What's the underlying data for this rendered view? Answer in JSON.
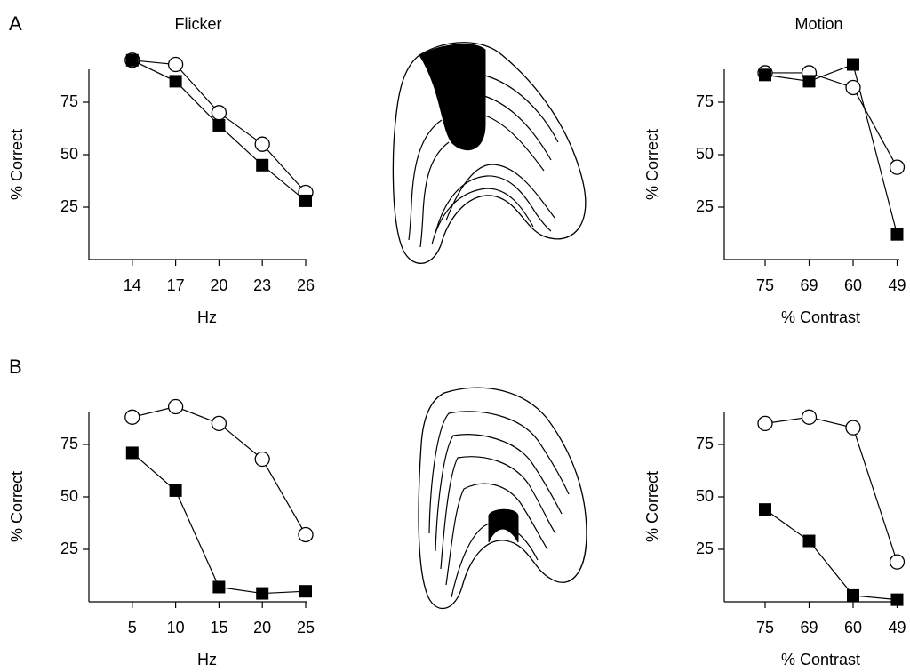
{
  "panel_labels": [
    "A",
    "B"
  ],
  "chart_data": [
    {
      "type": "line",
      "title": "Flicker",
      "xlabel": "Hz",
      "ylabel": "% Correct",
      "x": [
        14,
        17,
        20,
        23,
        26
      ],
      "xlim": [
        11,
        26
      ],
      "xticks": [
        14,
        17,
        20,
        23,
        26
      ],
      "ylim": [
        0,
        100
      ],
      "yticks": [
        25,
        50,
        75
      ],
      "series": [
        {
          "marker": "circle",
          "color": "#000000",
          "values": [
            95,
            93,
            70,
            55,
            32
          ]
        },
        {
          "marker": "square",
          "color": "#000000",
          "values": [
            95,
            85,
            64,
            45,
            28
          ]
        }
      ]
    },
    {
      "type": "line",
      "title": "Motion",
      "xlabel": "% Contrast",
      "ylabel": "% Correct",
      "categories": [
        "75",
        "69",
        "60",
        "49"
      ],
      "ylim": [
        0,
        100
      ],
      "yticks": [
        25,
        50,
        75
      ],
      "series": [
        {
          "marker": "circle",
          "color": "#000000",
          "values": [
            89,
            89,
            82,
            44
          ]
        },
        {
          "marker": "square",
          "color": "#000000",
          "values": [
            88,
            85,
            93,
            12
          ]
        }
      ]
    },
    {
      "type": "line",
      "xlabel": "Hz",
      "ylabel": "% Correct",
      "x": [
        5,
        10,
        15,
        20,
        25
      ],
      "xlim": [
        0,
        25
      ],
      "xticks": [
        5,
        10,
        15,
        20,
        25
      ],
      "ylim": [
        0,
        100
      ],
      "yticks": [
        25,
        50,
        75
      ],
      "series": [
        {
          "marker": "circle",
          "color": "#000000",
          "values": [
            88,
            93,
            85,
            68,
            32
          ]
        },
        {
          "marker": "square",
          "color": "#000000",
          "values": [
            71,
            53,
            7,
            4,
            5
          ]
        }
      ]
    },
    {
      "type": "line",
      "xlabel": "% Contrast",
      "ylabel": "% Correct",
      "categories": [
        "75",
        "69",
        "60",
        "49"
      ],
      "ylim": [
        0,
        100
      ],
      "yticks": [
        25,
        50,
        75
      ],
      "series": [
        {
          "marker": "circle",
          "color": "#000000",
          "values": [
            85,
            88,
            83,
            19
          ]
        },
        {
          "marker": "square",
          "color": "#000000",
          "values": [
            44,
            29,
            3,
            1
          ]
        }
      ]
    }
  ]
}
